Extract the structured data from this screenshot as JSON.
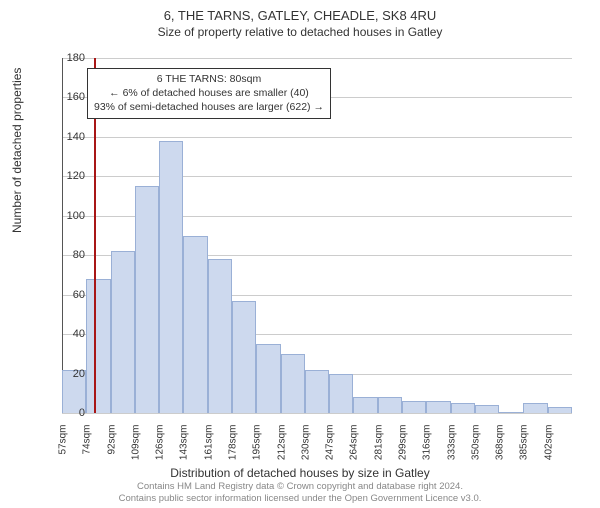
{
  "title": "6, THE TARNS, GATLEY, CHEADLE, SK8 4RU",
  "subtitle": "Size of property relative to detached houses in Gatley",
  "yAxisLabel": "Number of detached properties",
  "xAxisLabel": "Distribution of detached houses by size in Gatley",
  "chart": {
    "type": "histogram",
    "ylim": [
      0,
      180
    ],
    "ytick_step": 20,
    "background_color": "#ffffff",
    "grid_color": "#cccccc",
    "bar_fill": "#cdd9ee",
    "bar_stroke": "#9ab0d6",
    "reference_x": 80,
    "reference_color": "#a81616",
    "x_start": 57,
    "x_step": 17.3,
    "bins": 21,
    "categories": [
      "57sqm",
      "74sqm",
      "92sqm",
      "109sqm",
      "126sqm",
      "143sqm",
      "161sqm",
      "178sqm",
      "195sqm",
      "212sqm",
      "230sqm",
      "247sqm",
      "264sqm",
      "281sqm",
      "299sqm",
      "316sqm",
      "333sqm",
      "350sqm",
      "368sqm",
      "385sqm",
      "402sqm"
    ],
    "values": [
      22,
      68,
      82,
      115,
      138,
      90,
      78,
      57,
      35,
      30,
      22,
      20,
      8,
      8,
      6,
      6,
      5,
      4,
      0,
      5,
      3
    ]
  },
  "infoBox": {
    "line1": "6 THE TARNS: 80sqm",
    "line2": "← 6% of detached houses are smaller (40)",
    "line3": "93% of semi-detached houses are larger (622) →"
  },
  "footer": {
    "line1": "Contains HM Land Registry data © Crown copyright and database right 2024.",
    "line2": "Contains public sector information licensed under the Open Government Licence v3.0."
  }
}
